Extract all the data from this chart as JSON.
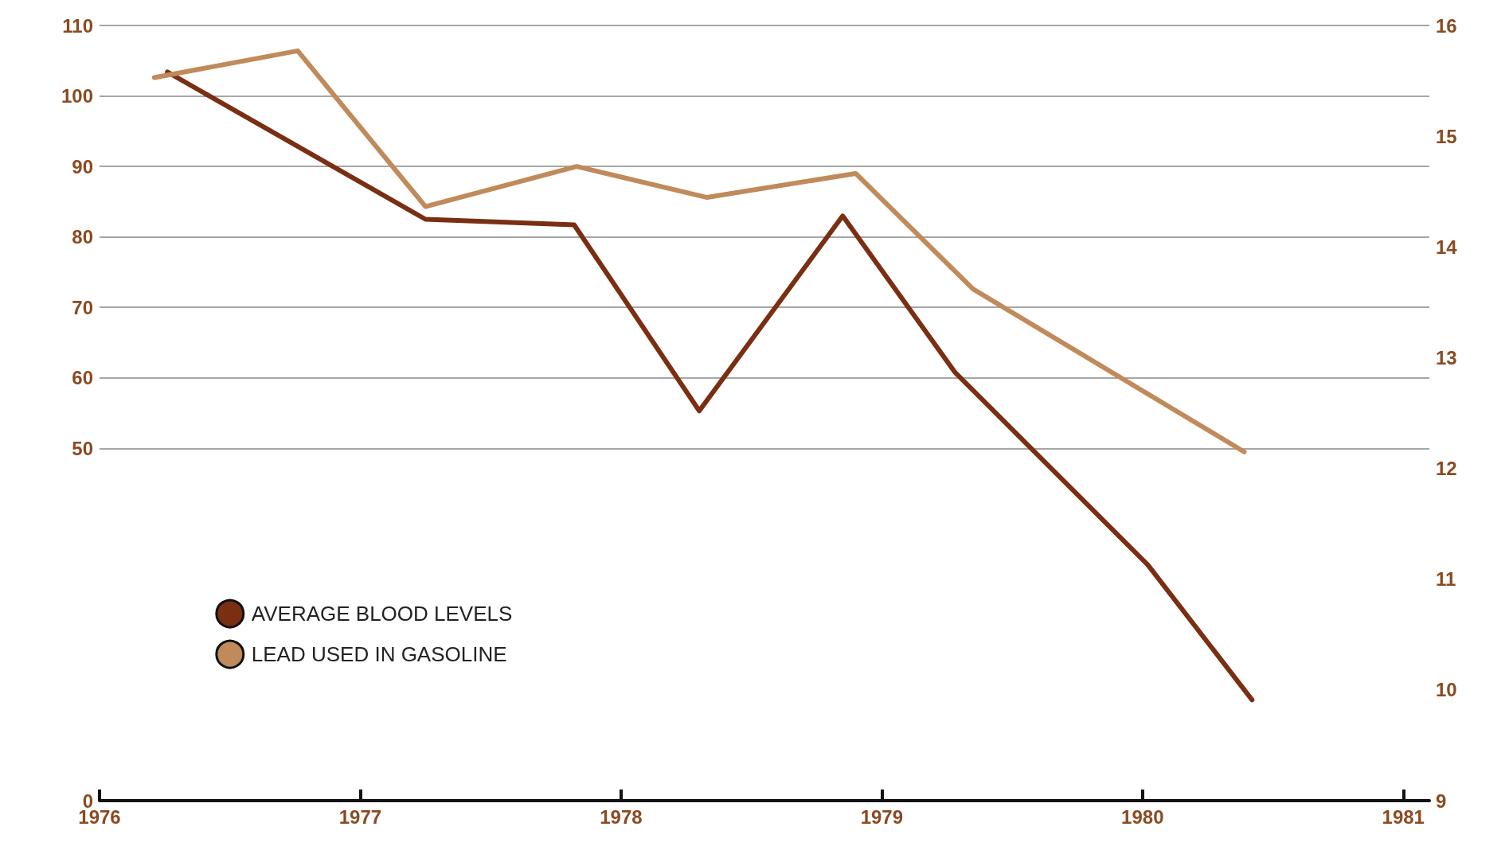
{
  "chart_data": {
    "type": "line",
    "xlim": [
      1976,
      1981.1
    ],
    "xticks": [
      1976,
      1977,
      1978,
      1979,
      1980,
      1981
    ],
    "ylim": [
      0,
      110
    ],
    "yticks": [
      0,
      50,
      60,
      70,
      80,
      90,
      100,
      110
    ],
    "y2lim": [
      9,
      16
    ],
    "y2ticks": [
      9,
      10,
      11,
      12,
      13,
      14,
      15,
      16
    ],
    "grid": "y",
    "legend": "bottom left",
    "marker": "none",
    "line_style": "solid",
    "series": [
      {
        "name": "AVERAGE BLOOD LEVELS",
        "color": "#7a2e12",
        "axis": "y2",
        "x": [
          1976.26,
          1977.25,
          1977.82,
          1978.3,
          1978.85,
          1979.28,
          1980.02,
          1980.42
        ],
        "values": [
          15.58,
          14.25,
          14.2,
          12.52,
          14.28,
          12.87,
          11.13,
          9.91
        ]
      },
      {
        "name": "LEAD USED IN GASOLINE",
        "color": "#c08a5a",
        "x": [
          1976.21,
          1976.76,
          1977.25,
          1977.83,
          1978.33,
          1978.9,
          1979.35,
          1980.39
        ],
        "values": [
          102.6,
          106.4,
          84.3,
          90.0,
          85.6,
          89.0,
          72.6,
          49.5
        ]
      }
    ]
  }
}
